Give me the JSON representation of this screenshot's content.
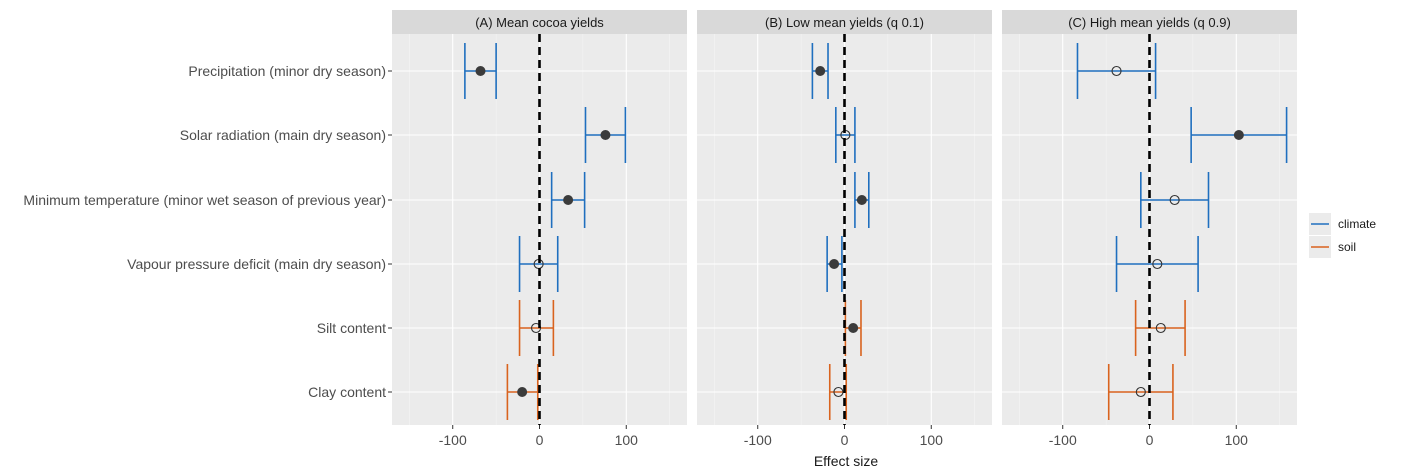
{
  "chart_data": {
    "type": "scatter",
    "subtype": "forest-plot",
    "xlabel": "Effect size",
    "xlim": [
      -170,
      170
    ],
    "x_ticks": [
      -100,
      0,
      100
    ],
    "x_minor_ticks": [
      -150,
      -50,
      50,
      150
    ],
    "grid": true,
    "reference_line": {
      "x": 0,
      "style": "dashed",
      "color": "#000000"
    },
    "colors": {
      "climate": "#1f6fbf",
      "soil": "#d9631e",
      "point_significant": "#3b3b3b"
    },
    "legend": {
      "position": "right",
      "entries": [
        "climate",
        "soil"
      ]
    },
    "categories": [
      "Precipitation (minor dry season)",
      "Solar radiation (main dry season)",
      "Minimum temperature (minor wet season of previous year)",
      "Vapour pressure deficit (main dry season)",
      "Silt content",
      "Clay content"
    ],
    "panels": [
      {
        "title": "(A) Mean cocoa yields",
        "points": [
          {
            "variable": "Precipitation (minor dry season)",
            "group": "climate",
            "estimate": -68,
            "lower": -86,
            "upper": -50,
            "significant": true
          },
          {
            "variable": "Solar radiation (main dry season)",
            "group": "climate",
            "estimate": 76,
            "lower": 53,
            "upper": 99,
            "significant": true
          },
          {
            "variable": "Minimum temperature (minor wet season of previous year)",
            "group": "climate",
            "estimate": 33,
            "lower": 14,
            "upper": 52,
            "significant": true
          },
          {
            "variable": "Vapour pressure deficit (main dry season)",
            "group": "climate",
            "estimate": -1,
            "lower": -23,
            "upper": 21,
            "significant": false
          },
          {
            "variable": "Silt content",
            "group": "soil",
            "estimate": -4,
            "lower": -23,
            "upper": 16,
            "significant": false
          },
          {
            "variable": "Clay content",
            "group": "soil",
            "estimate": -20,
            "lower": -37,
            "upper": -2,
            "significant": true
          }
        ]
      },
      {
        "title": "(B) Low mean yields (q 0.1)",
        "points": [
          {
            "variable": "Precipitation (minor dry season)",
            "group": "climate",
            "estimate": -28,
            "lower": -37,
            "upper": -19,
            "significant": true
          },
          {
            "variable": "Solar radiation (main dry season)",
            "group": "climate",
            "estimate": 1,
            "lower": -10,
            "upper": 12,
            "significant": false
          },
          {
            "variable": "Minimum temperature (minor wet season of previous year)",
            "group": "climate",
            "estimate": 20,
            "lower": 12,
            "upper": 28,
            "significant": true
          },
          {
            "variable": "Vapour pressure deficit (main dry season)",
            "group": "climate",
            "estimate": -12,
            "lower": -20,
            "upper": -3,
            "significant": true
          },
          {
            "variable": "Silt content",
            "group": "soil",
            "estimate": 10,
            "lower": 1,
            "upper": 19,
            "significant": true
          },
          {
            "variable": "Clay content",
            "group": "soil",
            "estimate": -7,
            "lower": -17,
            "upper": 2,
            "significant": false
          }
        ]
      },
      {
        "title": "(C) High mean yields (q 0.9)",
        "points": [
          {
            "variable": "Precipitation (minor dry season)",
            "group": "climate",
            "estimate": -38,
            "lower": -83,
            "upper": 7,
            "significant": false
          },
          {
            "variable": "Solar radiation (main dry season)",
            "group": "climate",
            "estimate": 103,
            "lower": 48,
            "upper": 158,
            "significant": true
          },
          {
            "variable": "Minimum temperature (minor wet season of previous year)",
            "group": "climate",
            "estimate": 29,
            "lower": -10,
            "upper": 68,
            "significant": false
          },
          {
            "variable": "Vapour pressure deficit (main dry season)",
            "group": "climate",
            "estimate": 9,
            "lower": -38,
            "upper": 56,
            "significant": false
          },
          {
            "variable": "Silt content",
            "group": "soil",
            "estimate": 13,
            "lower": -16,
            "upper": 41,
            "significant": false
          },
          {
            "variable": "Clay content",
            "group": "soil",
            "estimate": -10,
            "lower": -47,
            "upper": 27,
            "significant": false
          }
        ]
      }
    ]
  }
}
